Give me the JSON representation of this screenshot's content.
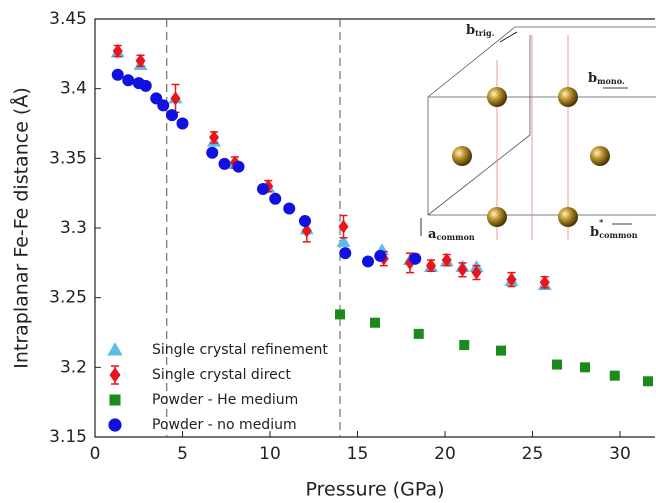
{
  "chart_data": {
    "type": "scatter",
    "xlabel": "Pressure (GPa)",
    "ylabel": "Intraplanar Fe-Fe distance (Å)",
    "xlim": [
      0,
      32
    ],
    "ylim": [
      3.15,
      3.45
    ],
    "xticks": [
      0,
      5,
      10,
      15,
      20,
      25,
      30
    ],
    "yticks": [
      3.15,
      3.2,
      3.25,
      3.3,
      3.35,
      3.4,
      3.45
    ],
    "vlines": [
      4.1,
      14
    ],
    "legend": "lower left",
    "series": [
      {
        "name": "Single crystal refinement",
        "color": "#5bbce6",
        "marker": "triangle",
        "x": [
          1.3,
          2.6,
          4.6,
          6.8,
          8.0,
          9.9,
          12.1,
          14.2,
          16.4,
          18.0,
          19.2,
          20.1,
          21.0,
          21.8,
          23.8,
          25.7
        ],
        "values": [
          3.426,
          3.417,
          3.393,
          3.362,
          3.346,
          3.329,
          3.299,
          3.29,
          3.284,
          3.277,
          3.272,
          3.276,
          3.272,
          3.272,
          3.262,
          3.259
        ]
      },
      {
        "name": "Single crystal direct",
        "color": "#e8151b",
        "marker": "diamond",
        "x": [
          1.3,
          2.6,
          4.6,
          6.8,
          8.0,
          9.9,
          12.1,
          14.2,
          16.5,
          18.0,
          19.2,
          20.1,
          21.0,
          21.8,
          23.8,
          25.7
        ],
        "values": [
          3.427,
          3.42,
          3.393,
          3.365,
          3.347,
          3.33,
          3.298,
          3.301,
          3.278,
          3.275,
          3.273,
          3.277,
          3.27,
          3.268,
          3.263,
          3.261
        ],
        "errors": [
          0.004,
          0.004,
          0.01,
          0.004,
          0.004,
          0.004,
          0.008,
          0.008,
          0.005,
          0.007,
          0.004,
          0.004,
          0.005,
          0.005,
          0.005,
          0.004
        ]
      },
      {
        "name": "Powder - He medium",
        "color": "#1a8a1a",
        "marker": "square",
        "x": [
          14.0,
          16.0,
          18.5,
          21.1,
          23.2,
          26.4,
          28.0,
          29.7,
          31.6
        ],
        "values": [
          3.238,
          3.232,
          3.224,
          3.216,
          3.212,
          3.202,
          3.2,
          3.194,
          3.19
        ]
      },
      {
        "name": "Powder - no medium",
        "color": "#1010e0",
        "marker": "circle",
        "x": [
          1.3,
          1.9,
          2.5,
          2.9,
          3.5,
          3.9,
          4.4,
          5.0,
          6.7,
          7.4,
          8.2,
          9.6,
          10.3,
          11.1,
          12.0,
          14.3,
          15.6,
          16.3,
          18.3
        ],
        "values": [
          3.41,
          3.406,
          3.404,
          3.402,
          3.393,
          3.388,
          3.381,
          3.375,
          3.354,
          3.346,
          3.344,
          3.328,
          3.321,
          3.314,
          3.305,
          3.282,
          3.276,
          3.28,
          3.278
        ]
      }
    ],
    "inset_labels": [
      {
        "base": "b",
        "sub": "trig."
      },
      {
        "base": "b",
        "sub": "mono."
      },
      {
        "base": "a",
        "sub": "common"
      },
      {
        "base": "b",
        "sup": "*",
        "sub": "common"
      }
    ]
  }
}
